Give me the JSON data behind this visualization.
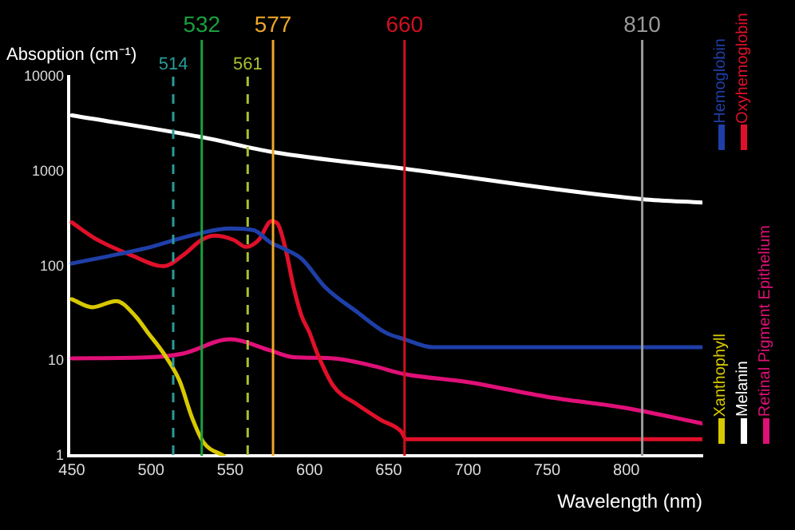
{
  "chart_data": {
    "type": "line",
    "ylabel": "Absoption (cm⁻¹)",
    "xlabel": "Wavelength (nm)",
    "xlim": [
      448,
      848
    ],
    "xticks": [
      450,
      500,
      550,
      600,
      650,
      700,
      750,
      800
    ],
    "ylim": [
      1,
      10000
    ],
    "yticks": [
      1,
      10,
      100,
      1000,
      10000
    ],
    "log": "y",
    "grid": false,
    "legend": "right",
    "marker": "none",
    "line_style": "solid",
    "series": [
      {
        "name": "Hemoglobin",
        "color": "#1f3fa8",
        "x": [
          450,
          480,
          500,
          520,
          550,
          565,
          575,
          585,
          595,
          610,
          630,
          648,
          660,
          678,
          848
        ],
        "values": [
          107,
          135,
          160,
          200,
          250,
          240,
          180,
          150,
          120,
          60,
          33,
          20,
          17,
          14,
          14
        ]
      },
      {
        "name": "Oxyhemoglobin",
        "color": "#e0102a",
        "x": [
          450,
          465,
          488,
          508,
          520,
          532,
          540,
          552,
          560,
          568,
          576,
          580,
          585,
          590,
          595,
          600,
          605,
          615,
          630,
          645,
          658,
          661,
          848
        ],
        "values": [
          290,
          195,
          130,
          100,
          130,
          190,
          210,
          190,
          160,
          190,
          300,
          280,
          150,
          60,
          30,
          20,
          12,
          5.5,
          3.5,
          2.4,
          1.8,
          1.5,
          1.5
        ]
      },
      {
        "name": "Xanthophyll",
        "color": "#d8c800",
        "x": [
          450,
          463,
          478,
          490,
          498,
          508,
          518,
          526,
          533,
          546
        ],
        "values": [
          45,
          37,
          43,
          30,
          20,
          12,
          6.2,
          2.5,
          1.4,
          1
        ]
      },
      {
        "name": "Melanin",
        "color": "#ffffff",
        "x": [
          450,
          532,
          577,
          660,
          810,
          848
        ],
        "values": [
          3900,
          2300,
          1600,
          1070,
          510,
          470
        ]
      },
      {
        "name": "Retinal Pigment Epithelium",
        "color": "#e01078",
        "x": [
          450,
          500,
          520,
          550,
          575,
          590,
          615,
          640,
          660,
          700,
          750,
          800,
          848
        ],
        "values": [
          10.7,
          11,
          12,
          17,
          13,
          11,
          10.7,
          8.9,
          7.3,
          6,
          4.2,
          3.2,
          2.2
        ]
      }
    ],
    "ref_lines": [
      {
        "axis": "x",
        "value": 514,
        "label": "514",
        "color": "#2a9a9a",
        "line_style": "dashed"
      },
      {
        "axis": "x",
        "value": 532,
        "label": "532",
        "color": "#1aa040",
        "line_style": "solid"
      },
      {
        "axis": "x",
        "value": 561,
        "label": "561",
        "color": "#a8c030",
        "line_style": "dashed"
      },
      {
        "axis": "x",
        "value": 577,
        "label": "577",
        "color": "#f0a828",
        "line_style": "solid"
      },
      {
        "axis": "x",
        "value": 660,
        "label": "660",
        "color": "#d01020",
        "line_style": "solid"
      },
      {
        "axis": "x",
        "value": 810,
        "label": "810",
        "color": "#999999",
        "line_style": "solid"
      }
    ]
  }
}
